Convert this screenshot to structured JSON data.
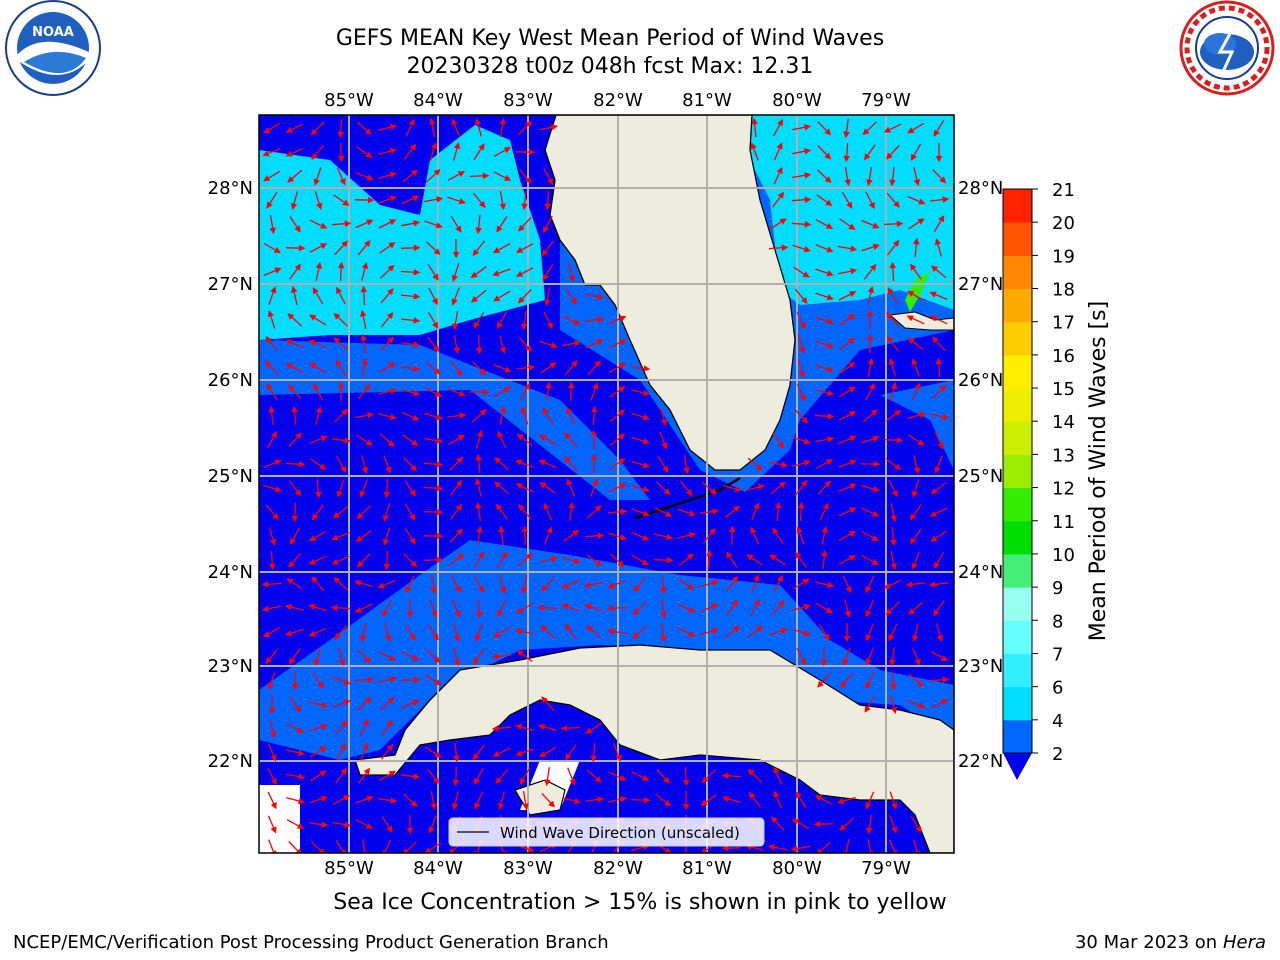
{
  "header": {
    "title_line1": "GEFS MEAN Key West Mean Period of Wind Waves",
    "title_line2": "20230328 t00z 048h fcst   Max: 12.31"
  },
  "logos": {
    "left": {
      "icon": "noaa-logo-icon",
      "text": "NOAA",
      "ring_text": "NATIONAL OCEANIC AND ATMOSPHERIC ADMINISTRATION · U.S. DEPARTMENT OF COMMERCE"
    },
    "right": {
      "icon": "nws-logo-icon",
      "ring_text": "NATIONAL WEATHER SERVICE"
    }
  },
  "map": {
    "lon_labels": [
      "85°W",
      "84°W",
      "83°W",
      "82°W",
      "81°W",
      "80°W",
      "79°W"
    ],
    "lat_labels": [
      "28°N",
      "27°N",
      "26°N",
      "25°N",
      "24°N",
      "23°N",
      "22°N"
    ],
    "legend_label": "Wind Wave Direction (unscaled)",
    "colors": {
      "land": "#eeeddd",
      "arrow": "#ff0000",
      "grid": "#b0b0b0"
    }
  },
  "colorbar": {
    "label": "Mean Period of Wind Waves [s]",
    "ticks": [
      "2",
      "4",
      "6",
      "7",
      "8",
      "9",
      "10",
      "11",
      "12",
      "13",
      "14",
      "15",
      "16",
      "17",
      "18",
      "19",
      "20",
      "21"
    ],
    "colors": [
      "#0066ff",
      "#00ddff",
      "#33eeff",
      "#66ffff",
      "#99ffee",
      "#44ee77",
      "#00dd00",
      "#33ee00",
      "#99ee00",
      "#ccee00",
      "#eeee00",
      "#ffee00",
      "#ffcc00",
      "#ffaa00",
      "#ff8800",
      "#ff5500",
      "#ff2200"
    ],
    "extend_color": "#0000ee"
  },
  "footer": {
    "ice_note": "Sea Ice Concentration > 15% is shown in pink to yellow",
    "credit_left": "NCEP/EMC/Verification Post Processing Product Generation Branch",
    "credit_date": "30 Mar 2023 on",
    "credit_host": "Hera"
  }
}
